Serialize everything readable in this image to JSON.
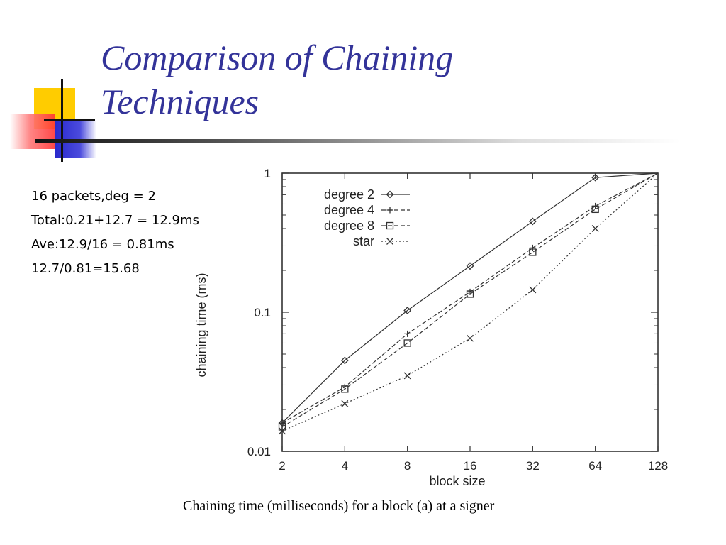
{
  "slide": {
    "title_lines": [
      "Comparison of Chaining",
      "Techniques"
    ],
    "notes": [
      "16 packets,deg = 2",
      "Total:0.21+12.7 = 12.9ms",
      "Ave:12.9/16 = 0.81ms",
      "12.7/0.81=15.68"
    ],
    "caption": "Chaining time (milliseconds) for a block (a) at a signer",
    "colors": {
      "title": "#333399",
      "deco_yellow": "#ffcc00",
      "deco_blue": "#3333cc",
      "deco_red": "#ff5555"
    }
  },
  "chart_data": {
    "type": "line",
    "xlabel": "block size",
    "ylabel": "chaining time (ms)",
    "x_scale": "log2",
    "y_scale": "log10",
    "xlim": [
      2,
      128
    ],
    "ylim": [
      0.01,
      1
    ],
    "x_ticks": [
      "2",
      "4",
      "8",
      "16",
      "32",
      "64",
      "128"
    ],
    "x_tick_values": [
      2,
      4,
      8,
      16,
      32,
      64,
      128
    ],
    "y_ticks": [
      "0.01",
      "0.1",
      "1"
    ],
    "y_tick_values": [
      0.01,
      0.1,
      1
    ],
    "grid": false,
    "legend_position": "top-left",
    "series": [
      {
        "name": "degree 2",
        "marker": "diamond",
        "line": "solid",
        "x": [
          2,
          4,
          8,
          16,
          32,
          64,
          128
        ],
        "y": [
          0.016,
          0.045,
          0.103,
          0.215,
          0.45,
          0.93,
          1.0
        ]
      },
      {
        "name": "degree 4",
        "marker": "plus",
        "line": "dashed",
        "x": [
          2,
          4,
          8,
          16,
          32,
          64,
          128
        ],
        "y": [
          0.016,
          0.029,
          0.07,
          0.14,
          0.29,
          0.58,
          1.0
        ]
      },
      {
        "name": "degree 8",
        "marker": "square",
        "line": "dashed",
        "x": [
          2,
          4,
          8,
          16,
          32,
          64,
          128
        ],
        "y": [
          0.015,
          0.028,
          0.06,
          0.135,
          0.27,
          0.55,
          1.0
        ]
      },
      {
        "name": "star",
        "marker": "cross",
        "line": "dotted",
        "x": [
          2,
          4,
          8,
          16,
          32,
          64,
          128
        ],
        "y": [
          0.014,
          0.022,
          0.035,
          0.065,
          0.145,
          0.4,
          1.0
        ]
      }
    ]
  }
}
